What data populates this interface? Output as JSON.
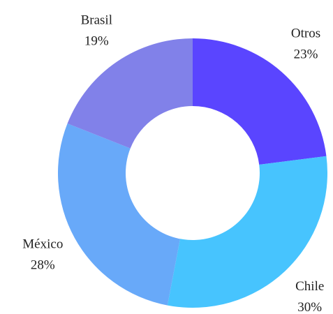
{
  "chart_data": {
    "type": "donut",
    "categories": [
      "Otros",
      "Chile",
      "México",
      "Brasil"
    ],
    "values": [
      23,
      30,
      28,
      19
    ],
    "value_labels": [
      "23%",
      "30%",
      "28%",
      "19%"
    ],
    "colors": [
      "#5a45ff",
      "#47c4fe",
      "#68a9f9",
      "#8181e9"
    ]
  }
}
